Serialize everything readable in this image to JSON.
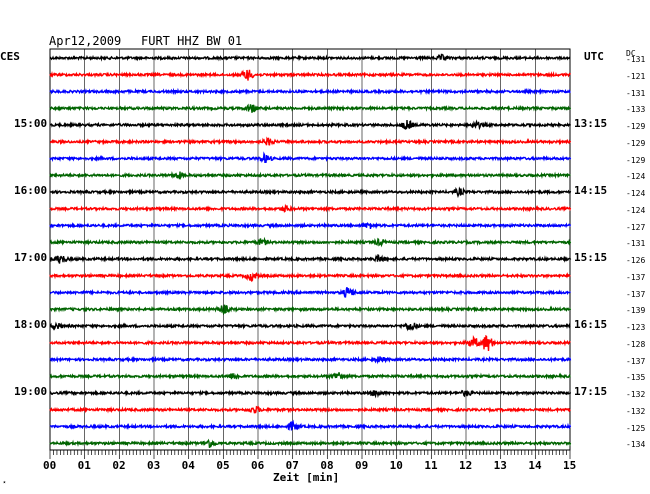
{
  "header": {
    "date": "Apr12,2009",
    "station": "FURT HHZ BW 01",
    "left_tz": "CES",
    "right_tz": "UTC",
    "dc_label": "DC"
  },
  "left_times": [
    "15:00",
    "16:00",
    "17:00",
    "18:00",
    "19:00"
  ],
  "right_times": [
    "13:15",
    "14:15",
    "15:15",
    "16:15",
    "17:15"
  ],
  "x_ticks": [
    "00",
    "01",
    "02",
    "03",
    "04",
    "05",
    "06",
    "07",
    "08",
    "09",
    "10",
    "11",
    "12",
    "13",
    "14",
    "15"
  ],
  "xlabel": "Zeit [min]",
  "corner_mark": "⋆",
  "dc_values": [
    "-131",
    "-121",
    "-131",
    "-133",
    "-129",
    "-129",
    "-129",
    "-124",
    "-124",
    "-124",
    "-127",
    "-131",
    "-126",
    "-137",
    "-137",
    "-139",
    "-123",
    "-128",
    "-137",
    "-135",
    "-132",
    "-132",
    "-125",
    "-134"
  ],
  "colors": {
    "trace_cycle": [
      "#000000",
      "#ff0000",
      "#0000ff",
      "#006400"
    ],
    "grid": "#000000"
  },
  "chart_data": {
    "type": "line",
    "title": "Apr12,2009  FURT HHZ BW 01",
    "xlabel": "Zeit [min]",
    "xlim": [
      0,
      15
    ],
    "rows": 24,
    "row_minutes": 15,
    "events": [
      {
        "row": 0,
        "minute": 11.3,
        "amp": 2.5
      },
      {
        "row": 1,
        "minute": 5.7,
        "amp": 5
      },
      {
        "row": 3,
        "minute": 5.8,
        "amp": 4
      },
      {
        "row": 4,
        "minute": 10.3,
        "amp": 4
      },
      {
        "row": 4,
        "minute": 12.3,
        "amp": 2.5
      },
      {
        "row": 5,
        "minute": 6.3,
        "amp": 3
      },
      {
        "row": 6,
        "minute": 6.2,
        "amp": 4
      },
      {
        "row": 7,
        "minute": 3.7,
        "amp": 3
      },
      {
        "row": 8,
        "minute": 11.8,
        "amp": 3
      },
      {
        "row": 9,
        "minute": 6.8,
        "amp": 2.5
      },
      {
        "row": 10,
        "minute": 9.2,
        "amp": 2.5
      },
      {
        "row": 11,
        "minute": 6.1,
        "amp": 3
      },
      {
        "row": 11,
        "minute": 9.5,
        "amp": 2.5
      },
      {
        "row": 12,
        "minute": 0.3,
        "amp": 4
      },
      {
        "row": 12,
        "minute": 9.5,
        "amp": 3
      },
      {
        "row": 13,
        "minute": 5.8,
        "amp": 4
      },
      {
        "row": 14,
        "minute": 8.6,
        "amp": 5
      },
      {
        "row": 15,
        "minute": 5.0,
        "amp": 4
      },
      {
        "row": 16,
        "minute": 10.4,
        "amp": 4
      },
      {
        "row": 16,
        "minute": 0.2,
        "amp": 2.5
      },
      {
        "row": 17,
        "minute": 12.6,
        "amp": 8
      },
      {
        "row": 17,
        "minute": 12.2,
        "amp": 5
      },
      {
        "row": 18,
        "minute": 9.5,
        "amp": 2.5
      },
      {
        "row": 19,
        "minute": 5.3,
        "amp": 3
      },
      {
        "row": 19,
        "minute": 8.3,
        "amp": 4
      },
      {
        "row": 20,
        "minute": 9.4,
        "amp": 3
      },
      {
        "row": 20,
        "minute": 12.0,
        "amp": 2.5
      },
      {
        "row": 21,
        "minute": 5.9,
        "amp": 3
      },
      {
        "row": 22,
        "minute": 7.0,
        "amp": 4
      },
      {
        "row": 23,
        "minute": 4.6,
        "amp": 4
      }
    ]
  }
}
